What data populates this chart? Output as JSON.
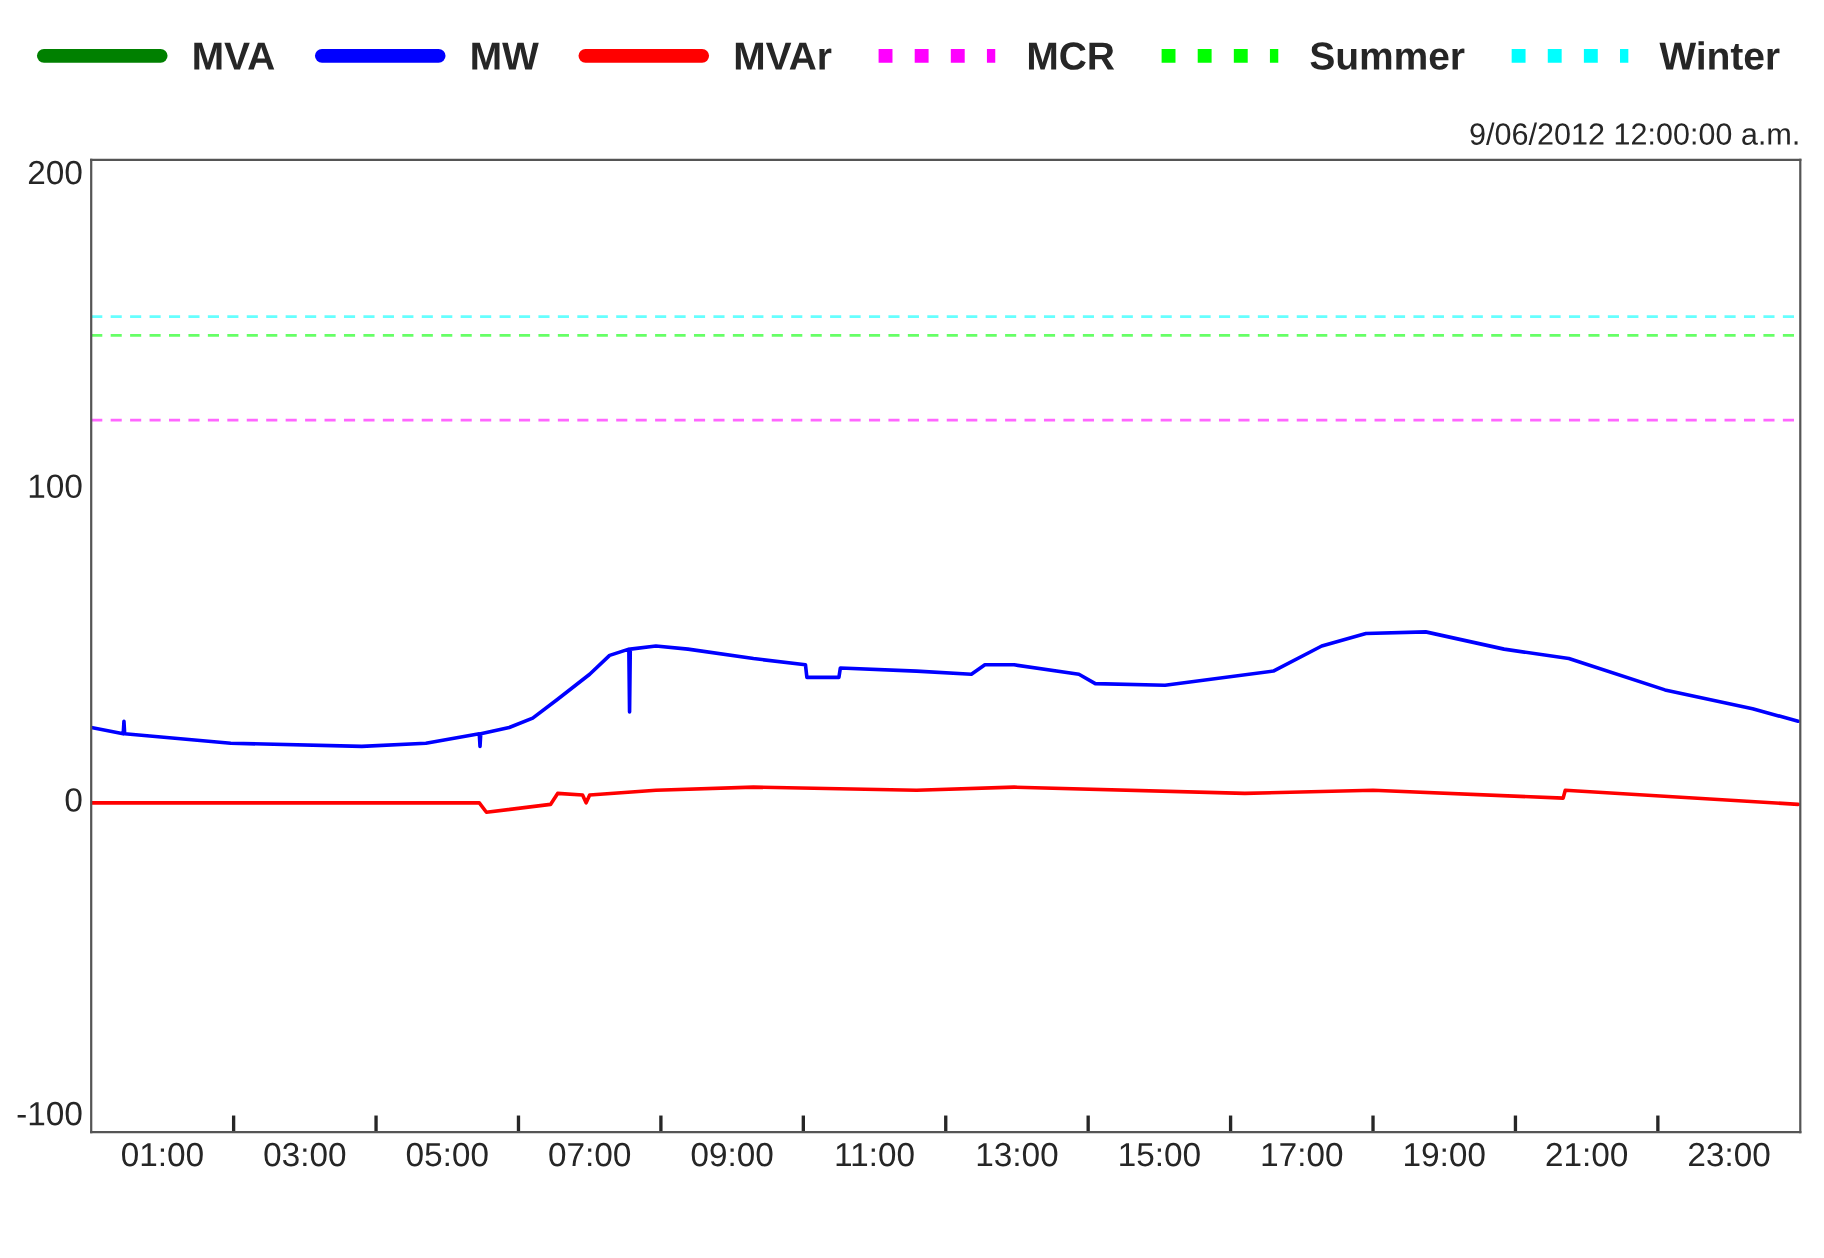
{
  "chart_data": {
    "type": "line",
    "subtitle": "9/06/2012 12:00:00 a.m.",
    "xlim": [
      0,
      24
    ],
    "xticks": [
      {
        "value": 1,
        "label": "01:00"
      },
      {
        "value": 2,
        "label": null
      },
      {
        "value": 3,
        "label": "03:00"
      },
      {
        "value": 4,
        "label": null
      },
      {
        "value": 5,
        "label": "05:00"
      },
      {
        "value": 6,
        "label": null
      },
      {
        "value": 7,
        "label": "07:00"
      },
      {
        "value": 8,
        "label": null
      },
      {
        "value": 9,
        "label": "09:00"
      },
      {
        "value": 10,
        "label": null
      },
      {
        "value": 11,
        "label": "11:00"
      },
      {
        "value": 12,
        "label": null
      },
      {
        "value": 13,
        "label": "13:00"
      },
      {
        "value": 14,
        "label": null
      },
      {
        "value": 15,
        "label": "15:00"
      },
      {
        "value": 16,
        "label": null
      },
      {
        "value": 17,
        "label": "17:00"
      },
      {
        "value": 18,
        "label": null
      },
      {
        "value": 19,
        "label": "19:00"
      },
      {
        "value": 20,
        "label": null
      },
      {
        "value": 21,
        "label": "21:00"
      },
      {
        "value": 22,
        "label": null
      },
      {
        "value": 23,
        "label": "23:00"
      }
    ],
    "ylim": [
      -105,
      205
    ],
    "yticks": [
      -100,
      0,
      100,
      200
    ],
    "grid": false,
    "legend": "top",
    "line_style": "solid",
    "marker": "none",
    "series": [
      {
        "name": "MVA",
        "color": "#008000"
      },
      {
        "name": "MW",
        "color": "#0000ff",
        "x": [
          0,
          0.45,
          0.46,
          0.47,
          1.96,
          3.8,
          4.7,
          5.45,
          5.46,
          5.47,
          5.87,
          6.2,
          6.55,
          7.0,
          7.28,
          7.55,
          7.56,
          7.57,
          7.93,
          8.38,
          9.3,
          10.03,
          10.05,
          10.5,
          10.52,
          11.59,
          12.36,
          12.55,
          12.96,
          13.87,
          14.1,
          15.08,
          16.6,
          17.28,
          17.9,
          18.74,
          19.84,
          20.75,
          22.1,
          23.33,
          23.97
        ],
        "values": [
          24,
          22,
          26,
          22,
          19,
          18,
          19,
          22,
          18,
          22,
          24,
          27,
          33,
          41,
          47,
          49,
          29,
          49,
          50,
          49,
          46,
          44,
          40,
          40,
          43,
          42,
          41,
          44,
          44,
          41,
          38,
          37.5,
          42,
          50,
          54,
          54.5,
          49,
          46,
          36,
          30,
          26
        ]
      },
      {
        "name": "MVAr",
        "color": "#ff0000",
        "x": [
          0,
          5.45,
          5.55,
          6.45,
          6.55,
          6.9,
          6.95,
          7.0,
          7.93,
          9.3,
          11.59,
          12.96,
          16.2,
          18.0,
          20.67,
          20.7,
          23.97
        ],
        "values": [
          0,
          0,
          -3,
          -0.5,
          3,
          2.5,
          0,
          2.5,
          4,
          5,
          4,
          5,
          3,
          4,
          1.5,
          4,
          -0.5
        ]
      }
    ],
    "ref_lines": [
      {
        "axis": "y",
        "value": 122,
        "label": "MCR",
        "color": "#ff00ff",
        "line_style": "dashed"
      },
      {
        "axis": "y",
        "value": 149,
        "label": "Summer",
        "color": "#00ff00",
        "line_style": "dashed"
      },
      {
        "axis": "y",
        "value": 155,
        "label": "Winter",
        "color": "#00ffff",
        "line_style": "dashed"
      }
    ]
  }
}
